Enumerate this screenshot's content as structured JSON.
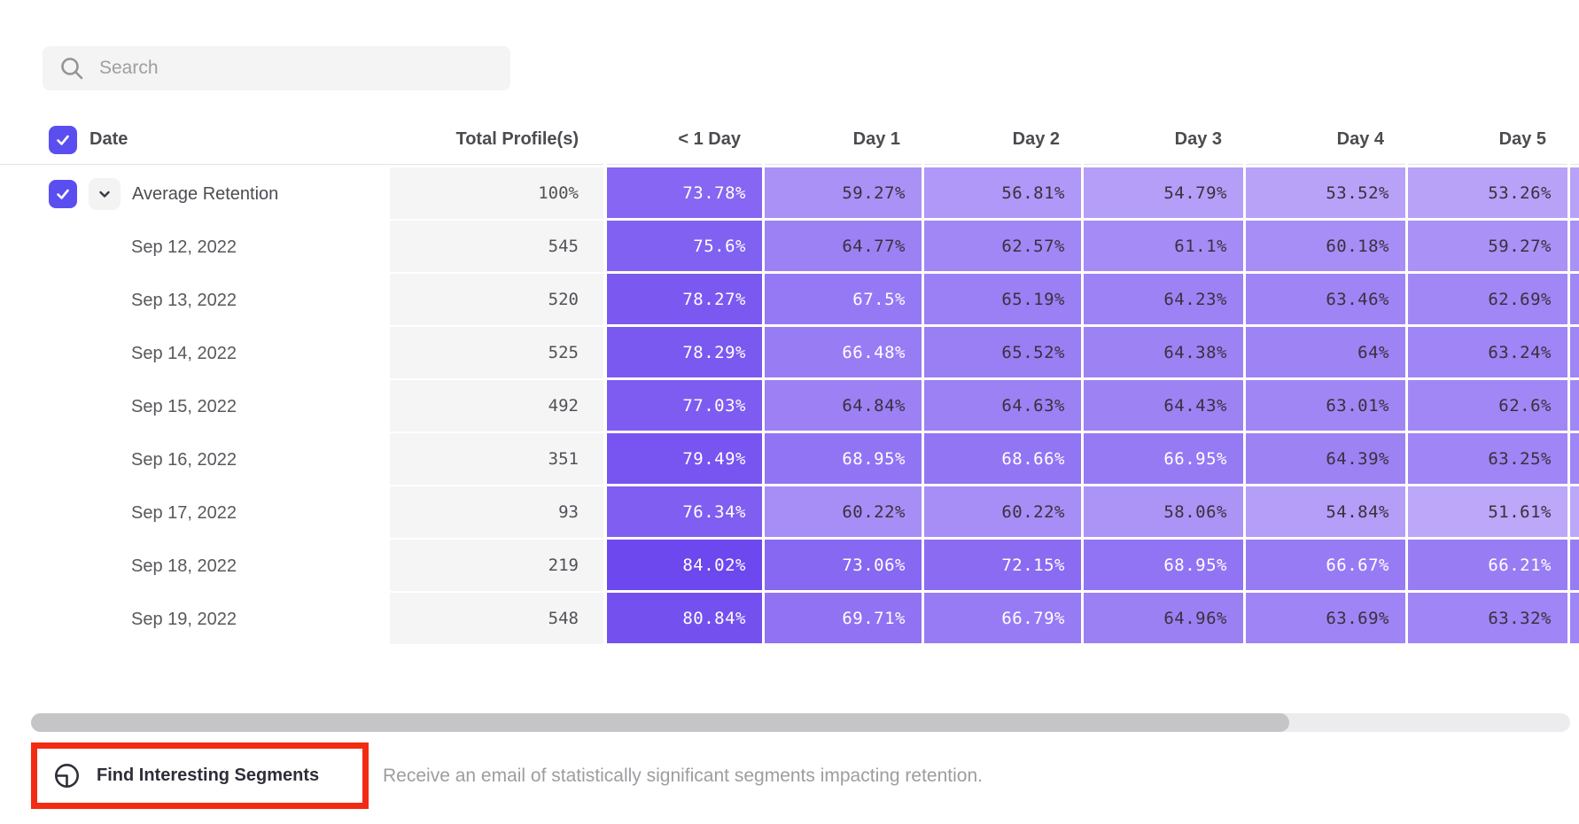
{
  "search": {
    "placeholder": "Search"
  },
  "table": {
    "columns": [
      "Date",
      "Total Profile(s)",
      "< 1 Day",
      "Day 1",
      "Day 2",
      "Day 3",
      "Day 4",
      "Day 5"
    ],
    "rows": [
      {
        "label": "Average Retention",
        "is_average": true,
        "total": "100%",
        "values": [
          "73.78%",
          "59.27%",
          "56.81%",
          "54.79%",
          "53.52%",
          "53.26%"
        ]
      },
      {
        "label": "Sep 12, 2022",
        "is_average": false,
        "total": "545",
        "values": [
          "75.6%",
          "64.77%",
          "62.57%",
          "61.1%",
          "60.18%",
          "59.27%"
        ]
      },
      {
        "label": "Sep 13, 2022",
        "is_average": false,
        "total": "520",
        "values": [
          "78.27%",
          "67.5%",
          "65.19%",
          "64.23%",
          "63.46%",
          "62.69%"
        ]
      },
      {
        "label": "Sep 14, 2022",
        "is_average": false,
        "total": "525",
        "values": [
          "78.29%",
          "66.48%",
          "65.52%",
          "64.38%",
          "64%",
          "63.24%"
        ]
      },
      {
        "label": "Sep 15, 2022",
        "is_average": false,
        "total": "492",
        "values": [
          "77.03%",
          "64.84%",
          "64.63%",
          "64.43%",
          "63.01%",
          "62.6%"
        ]
      },
      {
        "label": "Sep 16, 2022",
        "is_average": false,
        "total": "351",
        "values": [
          "79.49%",
          "68.95%",
          "68.66%",
          "66.95%",
          "64.39%",
          "63.25%"
        ]
      },
      {
        "label": "Sep 17, 2022",
        "is_average": false,
        "total": "93",
        "values": [
          "76.34%",
          "60.22%",
          "60.22%",
          "58.06%",
          "54.84%",
          "51.61%"
        ]
      },
      {
        "label": "Sep 18, 2022",
        "is_average": false,
        "total": "219",
        "values": [
          "84.02%",
          "73.06%",
          "72.15%",
          "68.95%",
          "66.67%",
          "66.21%"
        ]
      },
      {
        "label": "Sep 19, 2022",
        "is_average": false,
        "total": "548",
        "values": [
          "80.84%",
          "69.71%",
          "66.79%",
          "64.96%",
          "63.69%",
          "63.32%"
        ]
      }
    ]
  },
  "heatmap": {
    "min": 50,
    "max": 85,
    "white_text_threshold": 66
  },
  "colors": {
    "checkbox": "#5b4ef0",
    "cell_dark": "#6a45ee",
    "cell_light": "#c0acf9",
    "annotation_red": "#f22b12"
  },
  "footer": {
    "button_label": "Find Interesting Segments",
    "description": "Receive an email of statistically significant segments impacting retention."
  }
}
